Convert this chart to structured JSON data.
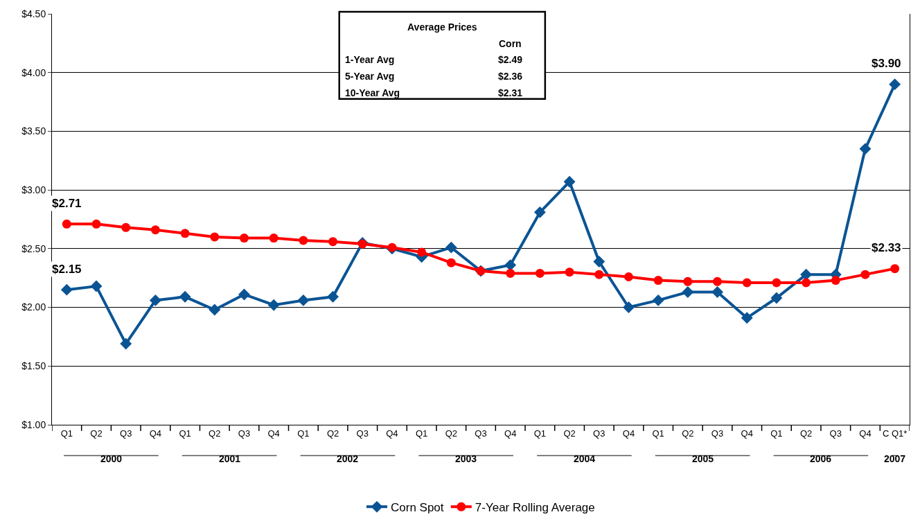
{
  "chart_data": {
    "type": "line",
    "categories": [
      "Q1",
      "Q2",
      "Q3",
      "Q4",
      "Q1",
      "Q2",
      "Q3",
      "Q4",
      "Q1",
      "Q2",
      "Q3",
      "Q4",
      "Q1",
      "Q2",
      "Q3",
      "Q4",
      "Q1",
      "Q2",
      "Q3",
      "Q4",
      "Q1",
      "Q2",
      "Q3",
      "Q4",
      "Q1",
      "Q2",
      "Q3",
      "Q4",
      "C Q1*"
    ],
    "series": [
      {
        "name": "Corn Spot",
        "color": "#0a5494",
        "marker": "diamond",
        "values": [
          2.15,
          2.18,
          1.69,
          2.06,
          2.09,
          1.98,
          2.11,
          2.02,
          2.06,
          2.09,
          2.55,
          2.5,
          2.43,
          2.51,
          2.31,
          2.36,
          2.81,
          3.07,
          2.39,
          2.0,
          2.06,
          2.13,
          2.13,
          1.91,
          2.08,
          2.28,
          2.28,
          3.35,
          3.9
        ],
        "value_labels": [
          "$2.15",
          null,
          null,
          null,
          null,
          null,
          null,
          null,
          null,
          null,
          null,
          null,
          null,
          null,
          null,
          null,
          null,
          null,
          null,
          null,
          null,
          null,
          null,
          null,
          null,
          null,
          null,
          null,
          "$3.90"
        ]
      },
      {
        "name": "7-Year Rolling Average",
        "color": "#ff0000",
        "marker": "circle",
        "values": [
          2.71,
          2.71,
          2.68,
          2.66,
          2.63,
          2.6,
          2.59,
          2.59,
          2.57,
          2.56,
          2.54,
          2.51,
          2.47,
          2.38,
          2.31,
          2.29,
          2.29,
          2.3,
          2.28,
          2.26,
          2.23,
          2.22,
          2.22,
          2.21,
          2.21,
          2.21,
          2.23,
          2.28,
          2.33
        ],
        "value_labels": [
          "$2.71",
          null,
          null,
          null,
          null,
          null,
          null,
          null,
          null,
          null,
          null,
          null,
          null,
          null,
          null,
          null,
          null,
          null,
          null,
          null,
          null,
          null,
          null,
          null,
          null,
          null,
          null,
          null,
          "$2.33"
        ]
      }
    ],
    "ylim": [
      1.0,
      4.5
    ],
    "yticks": [
      {
        "value": 1.0,
        "label": "$1.00"
      },
      {
        "value": 1.5,
        "label": "$1.50"
      },
      {
        "value": 2.0,
        "label": "$2.00"
      },
      {
        "value": 2.5,
        "label": "$2.50"
      },
      {
        "value": 3.0,
        "label": "$3.00"
      },
      {
        "value": 3.5,
        "label": "$3.50"
      },
      {
        "value": 4.0,
        "label": "$4.00"
      },
      {
        "value": 4.5,
        "label": "$4.50"
      }
    ],
    "grid": "y",
    "legend": "bottom",
    "annotations": [
      "2000",
      "2001",
      "2002",
      "2003",
      "2004",
      "2005",
      "2006",
      "2007",
      "Average Prices",
      "Corn",
      "1-Year Avg",
      "$2.49",
      "5-Year Avg",
      "$2.36",
      "10-Year Avg",
      "$2.31"
    ]
  }
}
